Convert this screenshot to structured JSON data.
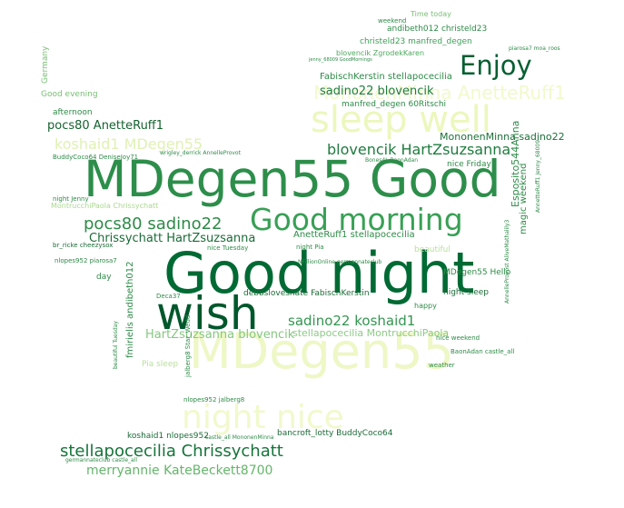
{
  "words": [
    {
      "text": "Good night",
      "color": "#006a34"
    },
    {
      "text": "MDegen55 Good",
      "color": "#2c8e4a"
    },
    {
      "text": "wish",
      "color": "#00572b"
    },
    {
      "text": "MDegen55",
      "color": "#eef7c6"
    },
    {
      "text": "sleep well",
      "color": "#ecf7bd"
    },
    {
      "text": "Good morning",
      "color": "#38a055"
    },
    {
      "text": "night nice",
      "color": "#f1f9cd"
    },
    {
      "text": "Enjoy",
      "color": "#055f31"
    },
    {
      "text": "MononenMinna AnetteRuff1",
      "color": "#f1f9cd"
    },
    {
      "text": "stellapocecilia Chrissychatt",
      "color": "#16743a"
    },
    {
      "text": "pocs80 sadino22",
      "color": "#2d8b47"
    },
    {
      "text": "koshaid1 MDegen55",
      "color": "#dff1b4"
    },
    {
      "text": "blovencik HartZsuzsanna",
      "color": "#1e7c3e"
    },
    {
      "text": "merryannie KateBeckett8700",
      "color": "#65b66b"
    },
    {
      "text": "sadino22 koshaid1",
      "color": "#349650"
    },
    {
      "text": "HartZsuzsanna blovencik",
      "color": "#86c780"
    },
    {
      "text": "Chrissychatt HartZsuzsanna",
      "color": "#1b6b37"
    },
    {
      "text": "pocs80 AnetteRuff1",
      "color": "#15622f"
    },
    {
      "text": "sadino22 blovencik",
      "color": "#1f7c3f"
    },
    {
      "text": "FabischKerstin stellapocecilia",
      "color": "#2d8b47"
    },
    {
      "text": "MononenMinna sadino22",
      "color": "#1b7038"
    },
    {
      "text": "AnetteRuff1 stellapocecilia",
      "color": "#2d8b47"
    },
    {
      "text": "stellapocecilia MontrucchiPaola",
      "color": "#8ccb86"
    },
    {
      "text": "debbslovesnate FabischKerstin",
      "color": "#1b6b37"
    },
    {
      "text": "bancroft_lotty BuddyCoco64",
      "color": "#1b6b37"
    },
    {
      "text": "koshaid1 nlopes952",
      "color": "#1b6b37"
    },
    {
      "text": "manfred_degen 60Ritschi",
      "color": "#2d8b47"
    },
    {
      "text": "andibeth012 christeld23",
      "color": "#2d8b47"
    },
    {
      "text": "christeld23 manfred_degen",
      "color": "#3f9e58"
    },
    {
      "text": "blovencik ZgrodekKaren",
      "color": "#4daa5f"
    },
    {
      "text": "Esposito544Anna",
      "color": "#2d8b47"
    },
    {
      "text": "MDegen55 Hello",
      "color": "#2d8b47"
    },
    {
      "text": "magic weekend",
      "color": "#2d8b47"
    },
    {
      "text": "MontrucchiPaola Chrissychatt",
      "color": "#a9d98e"
    },
    {
      "text": "fmirielis andibeth012",
      "color": "#2d8b47"
    },
    {
      "text": "night sleep",
      "color": "#1b6b37"
    },
    {
      "text": "nice Friday",
      "color": "#2d8b47"
    },
    {
      "text": "Good evening",
      "color": "#78bf74"
    },
    {
      "text": "afternoon",
      "color": "#2d8b47"
    },
    {
      "text": "beautiful",
      "color": "#b9e09b"
    },
    {
      "text": "happy",
      "color": "#2d8b47"
    },
    {
      "text": "Time today",
      "color": "#78bf74"
    },
    {
      "text": "Germany",
      "color": "#78bf74"
    },
    {
      "text": "day",
      "color": "#2d8b47"
    },
    {
      "text": "Pia sleep",
      "color": "#b9e09b"
    },
    {
      "text": "weekend",
      "color": "#2d8b47"
    },
    {
      "text": "BuddyCoco64 DeniseJoy71",
      "color": "#2d8b47"
    },
    {
      "text": "nlopes952 jalberg8",
      "color": "#2d8b47"
    },
    {
      "text": "nlopes952 piarosa7",
      "color": "#2d8b47"
    },
    {
      "text": "br_ricke cheezysox",
      "color": "#1b6b37"
    },
    {
      "text": "BaonAdan castle_all",
      "color": "#2d8b47"
    },
    {
      "text": "jalberg8 Star_Wedd",
      "color": "#2d8b47"
    },
    {
      "text": "night Pia",
      "color": "#2d8b47"
    },
    {
      "text": "nice Tuesday",
      "color": "#2d8b47"
    },
    {
      "text": "night Jenny",
      "color": "#2d8b47"
    },
    {
      "text": "Deca37",
      "color": "#2d8b47"
    },
    {
      "text": "weather",
      "color": "#2d8b47"
    },
    {
      "text": "nice weekend",
      "color": "#2d8b47"
    },
    {
      "text": "beautiful Tuesday",
      "color": "#2d8b47"
    },
    {
      "text": "piarosa7 moa_roos",
      "color": "#2d8b47"
    },
    {
      "text": "NFillionOnline germannateclub",
      "color": "#2d8b47"
    },
    {
      "text": "Bones4L BaonAdan",
      "color": "#2d8b47"
    },
    {
      "text": "jenny_68009 GoodMornings",
      "color": "#2d8b47"
    },
    {
      "text": "AnnelleProvost AliveMathalily3",
      "color": "#2d8b47"
    },
    {
      "text": "germannateclub castle_all",
      "color": "#2d8b47"
    },
    {
      "text": "castle_all MononenMinna",
      "color": "#2d8b47"
    },
    {
      "text": "AnnetteRuff1 Jenny_68009",
      "color": "#2d8b47"
    },
    {
      "text": "wrigley_derrick AnnelleProvot",
      "color": "#2d8b47"
    }
  ]
}
